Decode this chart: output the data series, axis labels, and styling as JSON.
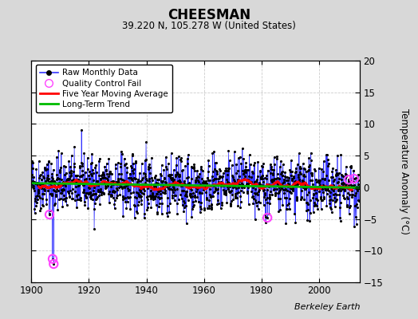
{
  "title": "CHEESMAN",
  "subtitle": "39.220 N, 105.278 W (United States)",
  "ylabel": "Temperature Anomaly (°C)",
  "credit": "Berkeley Earth",
  "xlim": [
    1900,
    2014
  ],
  "ylim": [
    -15,
    20
  ],
  "yticks": [
    -15,
    -10,
    -5,
    0,
    5,
    10,
    15,
    20
  ],
  "xticks": [
    1900,
    1920,
    1940,
    1960,
    1980,
    2000
  ],
  "bg_color": "#d8d8d8",
  "plot_bg_color": "#ffffff",
  "raw_line_color": "#3333ff",
  "raw_dot_color": "#000000",
  "ma_color": "#ff0000",
  "trend_color": "#00bb00",
  "qc_color": "#ff44ff",
  "seed": 42,
  "start_year": 1900,
  "n_months": 1368,
  "ma_window": 60,
  "qc_points": [
    {
      "year": 1906.3,
      "value": -4.3
    },
    {
      "year": 1907.4,
      "value": -11.3
    },
    {
      "year": 1907.75,
      "value": -12.1
    },
    {
      "year": 1982.0,
      "value": -4.8
    },
    {
      "year": 2010.3,
      "value": 1.2
    },
    {
      "year": 2012.1,
      "value": 1.35
    }
  ]
}
